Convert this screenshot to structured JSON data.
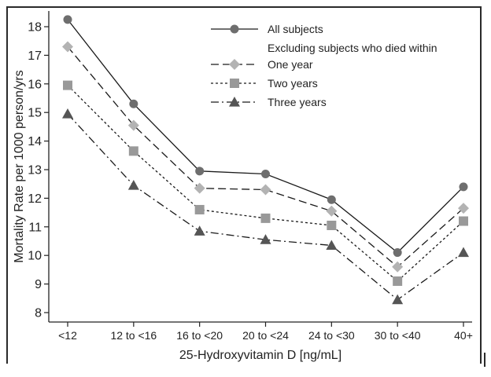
{
  "chart_data": {
    "type": "line",
    "title": "",
    "xlabel": "25-Hydroxyvitamin D [ng/mL]",
    "ylabel": "Mortality Rate per 1000 person/yrs",
    "categories": [
      "<12",
      "12 to <16",
      "16 to <20",
      "20 to <24",
      "24 to <30",
      "30 to <40",
      "40+"
    ],
    "ylim": [
      7.6,
      18.6
    ],
    "yticks": [
      8,
      9,
      10,
      11,
      12,
      13,
      14,
      15,
      16,
      17,
      18
    ],
    "grid": false,
    "legend_position": "top-right",
    "legend_note": "Excluding subjects who died within",
    "series": [
      {
        "name": "All subjects",
        "values": [
          18.25,
          15.3,
          12.95,
          12.85,
          11.95,
          10.1,
          12.4
        ],
        "color": "#6e6e6e",
        "marker": "circle",
        "dash": "solid"
      },
      {
        "name": "One year",
        "values": [
          17.3,
          14.55,
          12.35,
          12.3,
          11.55,
          9.6,
          11.65
        ],
        "color": "#b3b3b3",
        "marker": "diamond",
        "dash": "long-dash"
      },
      {
        "name": "Two years",
        "values": [
          15.95,
          13.65,
          11.6,
          11.3,
          11.05,
          9.1,
          11.2
        ],
        "color": "#999999",
        "marker": "square",
        "dash": "short-dash"
      },
      {
        "name": "Three years",
        "values": [
          14.95,
          12.45,
          10.85,
          10.55,
          10.35,
          8.45,
          10.1
        ],
        "color": "#555555",
        "marker": "triangle",
        "dash": "dash-dot"
      }
    ]
  }
}
